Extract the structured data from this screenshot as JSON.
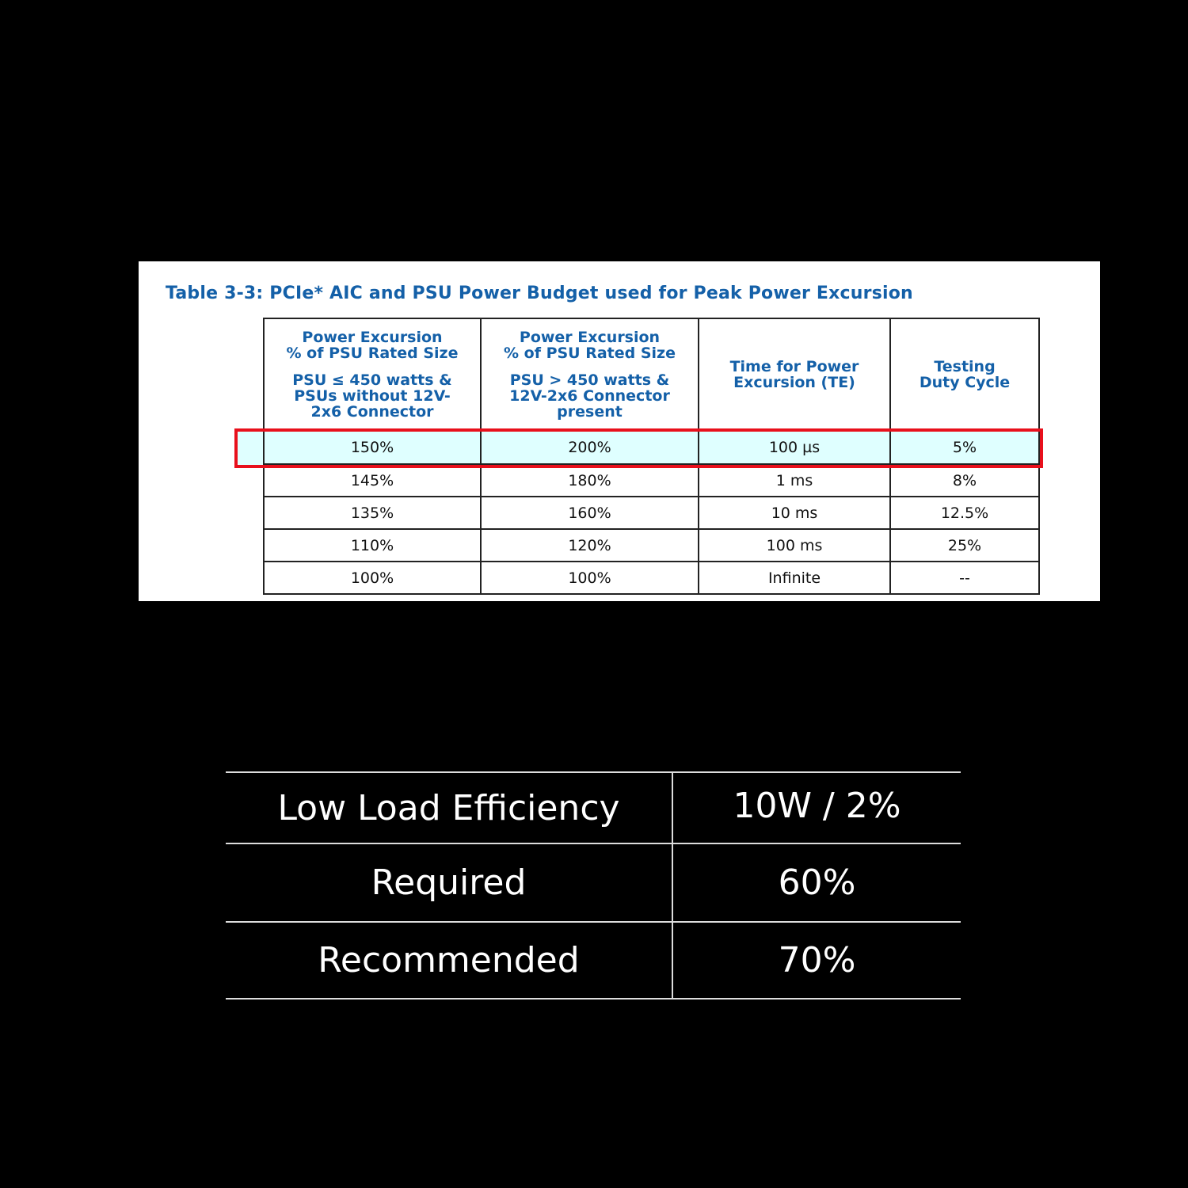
{
  "spec_table": {
    "title": "Table 3-3: PCIe* AIC and PSU Power Budget used for Peak Power Excursion",
    "headers": [
      {
        "line1": "Power Excursion",
        "line2": "% of PSU Rated Size",
        "line3": "PSU ≤ 450 watts &",
        "line4": "PSUs without 12V-",
        "line5": "2x6 Connector"
      },
      {
        "line1": "Power Excursion",
        "line2": "% of PSU Rated Size",
        "line3": "PSU > 450 watts &",
        "line4": "12V-2x6 Connector",
        "line5": "present"
      },
      {
        "line1": "Time for Power",
        "line2": "Excursion (TE)"
      },
      {
        "line1": "Testing",
        "line2": "Duty Cycle"
      }
    ],
    "rows": [
      [
        "150%",
        "200%",
        "100 µs",
        "5%"
      ],
      [
        "145%",
        "180%",
        "1 ms",
        "8%"
      ],
      [
        "135%",
        "160%",
        "10 ms",
        "12.5%"
      ],
      [
        "110%",
        "120%",
        "100 ms",
        "25%"
      ],
      [
        "100%",
        "100%",
        "Infinite",
        "--"
      ]
    ],
    "highlighted_row": 0,
    "highlight_color": "#e8101c",
    "header_color": "#1460a8"
  },
  "summary_table": {
    "rows": [
      [
        "Low Load Efficiency",
        "10W / 2%"
      ],
      [
        "Required",
        "60%"
      ],
      [
        "Recommended",
        "70%"
      ]
    ]
  }
}
